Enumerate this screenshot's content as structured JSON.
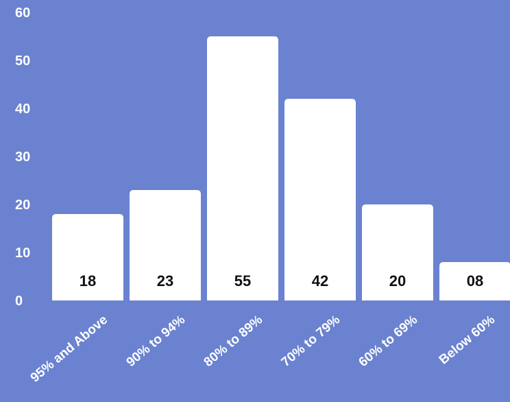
{
  "chart_data": {
    "type": "bar",
    "categories": [
      "95% and Above",
      "90% to 94%",
      "80% to 89%",
      "70% to 79%",
      "60% to 69%",
      "Below 60%"
    ],
    "values": [
      18,
      23,
      55,
      42,
      20,
      8
    ],
    "data_labels": [
      "18",
      "23",
      "55",
      "42",
      "20",
      "08"
    ],
    "y_ticks": [
      "0",
      "10",
      "20",
      "30",
      "40",
      "50",
      "60"
    ],
    "ylim": [
      0,
      60
    ],
    "title": "",
    "xlabel": "",
    "ylabel": "",
    "grid": false,
    "legend": "none"
  },
  "colors": {
    "background": "#6a82cf",
    "bar": "#ffffff",
    "axis_text": "#ffffff",
    "label_text": "#111111"
  }
}
